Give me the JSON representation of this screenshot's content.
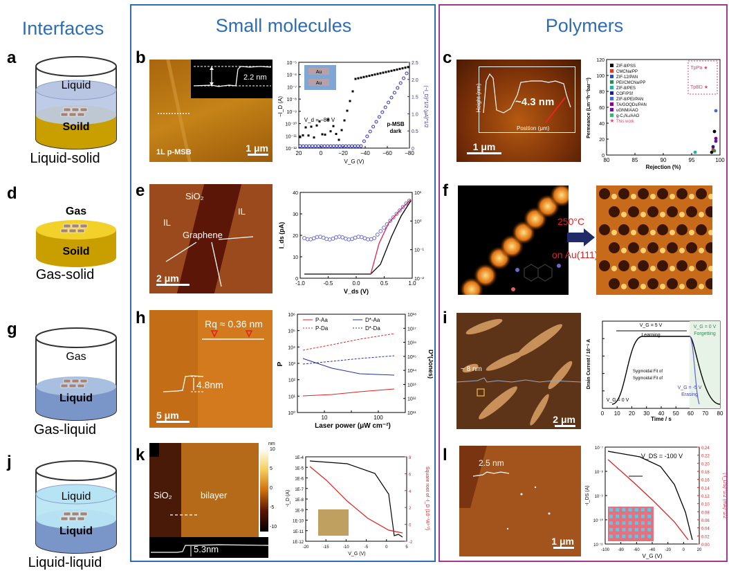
{
  "columns": {
    "interfaces": "Interfaces",
    "small_molecules": "Small molecules",
    "polymers": "Polymers"
  },
  "interfaces": [
    {
      "letter": "a",
      "top": "Liquid",
      "bottom": "Soild",
      "caption": "Liquid-solid"
    },
    {
      "letter": "d",
      "top": "Gas",
      "bottom": "Soild",
      "caption": "Gas-solid"
    },
    {
      "letter": "g",
      "top": "Gas",
      "bottom": "Liquid",
      "caption": "Gas-liquid"
    },
    {
      "letter": "j",
      "top": "Liquid",
      "bottom": "Liquid",
      "caption": "Liquid-liquid"
    }
  ],
  "panel_b": {
    "letter": "b",
    "height": "2.2 nm",
    "label": "1L p-MSB",
    "scale": "1 μm",
    "plot": {
      "vd": "V_d = −80 V",
      "note1": "p-MSB",
      "note2": "dark",
      "xlabel": "V_G (V)",
      "ylabel": "−I_D (A)",
      "y2label": "(−I_D)^1/2 (μA)^1/2",
      "inset": "Au",
      "xticks": [
        "20",
        "0",
        "−20",
        "−40",
        "−60",
        "−80"
      ],
      "yticks": [
        "10⁻⁵",
        "10⁻⁶",
        "10⁻⁷",
        "10⁻⁸",
        "10⁻⁹",
        "10⁻¹⁰",
        "10⁻¹¹",
        "10⁻¹²"
      ],
      "y2ticks": [
        "2.5",
        "2.0",
        "1.5",
        "1.0",
        "0.5",
        "0"
      ]
    }
  },
  "panel_c": {
    "letter": "c",
    "height": "~4.3 nm",
    "scale": "1 μm",
    "inset_xlabel": "Position (μm)",
    "inset_ylabel": "Height (nm)",
    "inset_xticks": [
      "0.0",
      "0.3",
      "0.6",
      "0.9",
      "1.2"
    ],
    "inset_yticks": [
      "6",
      "4",
      "2",
      "0",
      "-2"
    ],
    "plot": {
      "xlabel": "Rejection (%)",
      "ylabel": "Permeance (Lm⁻²h⁻¹bar⁻¹)",
      "xticks": [
        "80",
        "85",
        "90",
        "95",
        "100"
      ],
      "yticks": [
        "120",
        "100",
        "80",
        "60",
        "40",
        "20",
        "0"
      ],
      "legend": [
        {
          "name": "ZIF-8/PSS",
          "color": "#000000"
        },
        {
          "name": "CMCNa/PP",
          "color": "#e0392b"
        },
        {
          "name": "ZIF-12/PAN",
          "color": "#2d4fb0"
        },
        {
          "name": "PEI/CMCNa/PP",
          "color": "#2e8b57"
        },
        {
          "name": "ZIF-8/PES",
          "color": "#20b2aa"
        },
        {
          "name": "COF/PSf",
          "color": "#1c1c8c"
        },
        {
          "name": "ZIF-8/PEI/PAN",
          "color": "#4169e1"
        },
        {
          "name": "TA/GOQDs/PAN",
          "color": "#8b008b"
        },
        {
          "name": "uGNM/AAO",
          "color": "#6a0dad"
        },
        {
          "name": "g-C₃N₄/AAO",
          "color": "#3cb371"
        },
        {
          "name": "This work",
          "color": "#e23c74"
        }
      ],
      "tags": [
        "TpPa",
        "TpBD"
      ]
    }
  },
  "panel_e": {
    "letter": "e",
    "sio2": "SiO₂",
    "il1": "IL",
    "il2": "IL",
    "graphene": "Graphene",
    "scale": "2 μm",
    "plot": {
      "xlabel": "V_ds (V)",
      "ylabel": "I_ds (pA)",
      "xticks": [
        "-1.0",
        "-0.5",
        "0.0",
        "0.5",
        "1.0"
      ],
      "yticks": [
        "40",
        "30",
        "20",
        "10",
        "0"
      ],
      "y2ticks": [
        "10¹",
        "10⁰",
        "10⁻¹",
        "10⁻²"
      ]
    }
  },
  "panel_f": {
    "letter": "f",
    "temp": "250°C",
    "substrate": "on Au(111)"
  },
  "panel_h": {
    "letter": "h",
    "rq": "Rq ≈ 0.36 nm",
    "height": "4.8nm",
    "scale": "5 μm",
    "plot": {
      "xlabel": "Laser power (μW cm⁻²)",
      "ylabel": "P",
      "y2label": "D*(Jones)",
      "legend": [
        "P-Aa",
        "D*-Aa",
        "P-Da",
        "D*-Da"
      ],
      "xticks": [
        "10",
        "100"
      ],
      "yticks": [
        "10⁶",
        "10⁵",
        "10⁴",
        "10³",
        "10²",
        "10¹",
        "10⁰"
      ],
      "y2ticks": [
        "10¹⁸",
        "10¹⁷",
        "10¹⁶",
        "10¹⁵",
        "10¹⁴",
        "10¹³",
        "10¹²",
        "10¹¹"
      ]
    }
  },
  "panel_i": {
    "letter": "i",
    "height": "~ 8 nm",
    "scale": "2 μm",
    "plot": {
      "xlabel": "Time / s",
      "ylabel": "Drain Current / 10⁻⁵ A",
      "vg5": "V_G = 5 V",
      "learning": "Learning",
      "vg0r": "V_G = 0 V",
      "forgetting": "Forgetting",
      "vg0l": "V_G = 0 V",
      "vgm5": "V_G = -5 V",
      "erasing": "Erasing",
      "fit1": "Sygmoidal Fit of",
      "fit2": "Sygmoidal Fit of",
      "xticks": [
        "0",
        "10",
        "20",
        "30",
        "40",
        "50",
        "60",
        "70",
        "80"
      ]
    }
  },
  "panel_k": {
    "letter": "k",
    "sio2": "SiO₂",
    "bilayer": "bilayer",
    "height": "5.3nm",
    "unit": "nm",
    "cbar": [
      "10",
      "5",
      "0",
      "-5",
      "-10"
    ],
    "plot": {
      "xlabel": "V_G (V)",
      "ylabel": "-I_D (A)",
      "y2label": "Square root of -I_D (10⁻³A¹ᐟ²)",
      "xticks": [
        "-20",
        "-15",
        "-10",
        "-5",
        "0",
        "5"
      ],
      "yticks": [
        "1E-4",
        "1E-5",
        "1E-6",
        "1E-7",
        "1E-8",
        "1E-9",
        "1E-10",
        "1E-11",
        "1E-12"
      ],
      "y2ticks": [
        "8",
        "6",
        "4",
        "2",
        "0",
        "-2"
      ]
    }
  },
  "panel_l": {
    "letter": "l",
    "height": "2.5 nm",
    "scale": "1 μm",
    "plot": {
      "vds": "V_DS = -100 V",
      "xlabel": "V_G (V)",
      "ylabel": "-I_DS (A)",
      "y2label": "(-I_DS)^1/2 (mA)^1/2",
      "xticks": [
        "-100",
        "-80",
        "-60",
        "-40",
        "-20",
        "0",
        "20"
      ],
      "yticks": [
        "10⁻⁷",
        "10⁻⁸",
        "10⁻⁹",
        "10⁻¹⁰",
        "10⁻¹¹"
      ],
      "y2ticks": [
        "0.24",
        "0.22",
        "0.20",
        "0.18",
        "0.16",
        "0.14",
        "0.12",
        "0.10",
        "0.08",
        "0.06",
        "0.04",
        "0.02",
        "0.00"
      ]
    }
  }
}
